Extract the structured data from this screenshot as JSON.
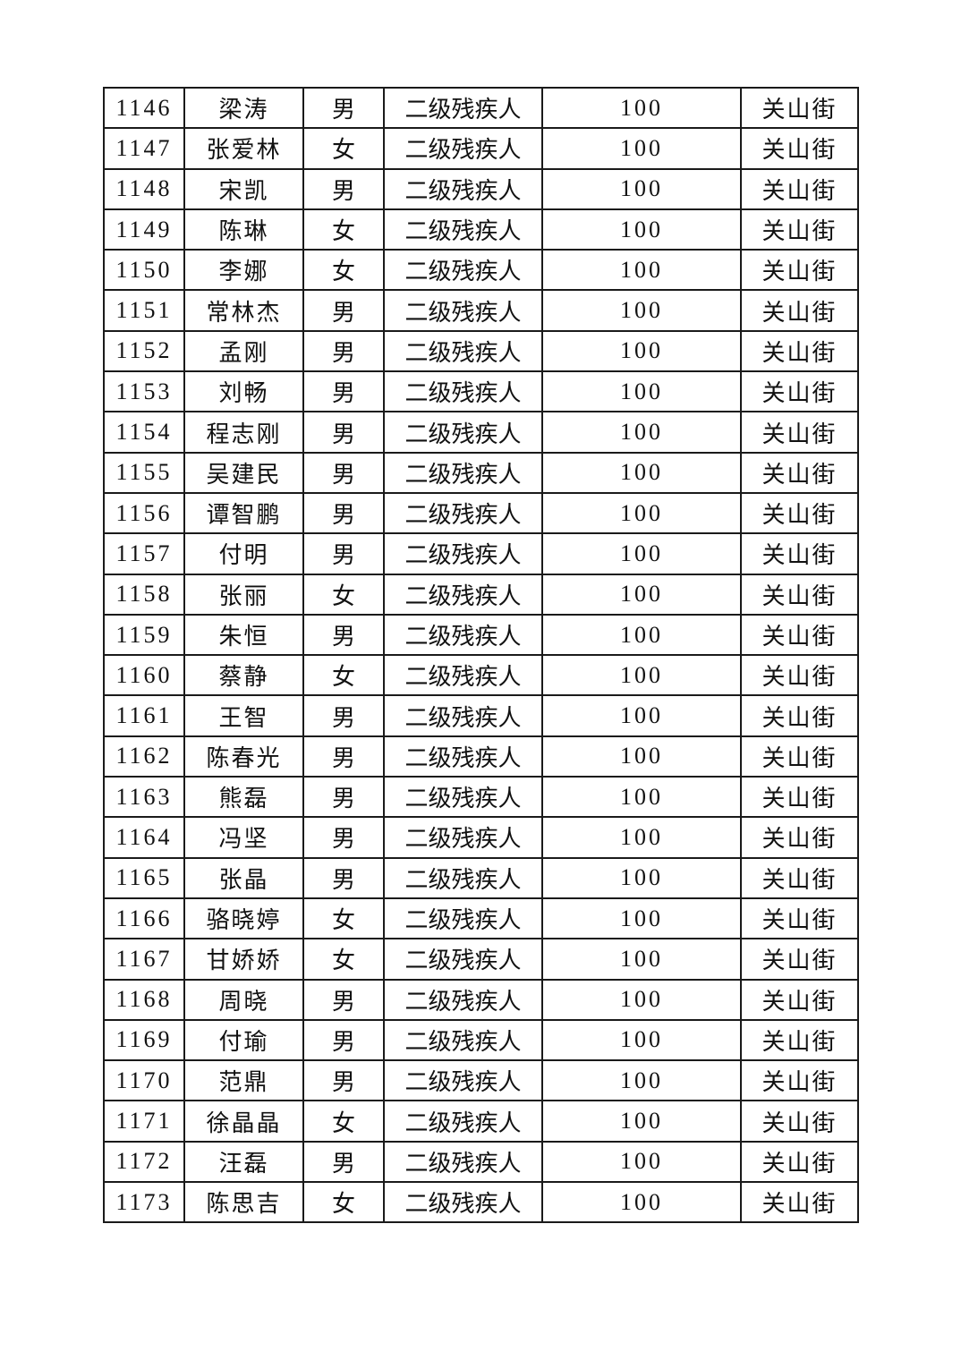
{
  "table": {
    "rows": [
      [
        "1146",
        "梁涛",
        "男",
        "二级残疾人",
        "100",
        "关山街"
      ],
      [
        "1147",
        "张爱林",
        "女",
        "二级残疾人",
        "100",
        "关山街"
      ],
      [
        "1148",
        "宋凯",
        "男",
        "二级残疾人",
        "100",
        "关山街"
      ],
      [
        "1149",
        "陈琳",
        "女",
        "二级残疾人",
        "100",
        "关山街"
      ],
      [
        "1150",
        "李娜",
        "女",
        "二级残疾人",
        "100",
        "关山街"
      ],
      [
        "1151",
        "常林杰",
        "男",
        "二级残疾人",
        "100",
        "关山街"
      ],
      [
        "1152",
        "孟刚",
        "男",
        "二级残疾人",
        "100",
        "关山街"
      ],
      [
        "1153",
        "刘畅",
        "男",
        "二级残疾人",
        "100",
        "关山街"
      ],
      [
        "1154",
        "程志刚",
        "男",
        "二级残疾人",
        "100",
        "关山街"
      ],
      [
        "1155",
        "吴建民",
        "男",
        "二级残疾人",
        "100",
        "关山街"
      ],
      [
        "1156",
        "谭智鹏",
        "男",
        "二级残疾人",
        "100",
        "关山街"
      ],
      [
        "1157",
        "付明",
        "男",
        "二级残疾人",
        "100",
        "关山街"
      ],
      [
        "1158",
        "张丽",
        "女",
        "二级残疾人",
        "100",
        "关山街"
      ],
      [
        "1159",
        "朱恒",
        "男",
        "二级残疾人",
        "100",
        "关山街"
      ],
      [
        "1160",
        "蔡静",
        "女",
        "二级残疾人",
        "100",
        "关山街"
      ],
      [
        "1161",
        "王智",
        "男",
        "二级残疾人",
        "100",
        "关山街"
      ],
      [
        "1162",
        "陈春光",
        "男",
        "二级残疾人",
        "100",
        "关山街"
      ],
      [
        "1163",
        "熊磊",
        "男",
        "二级残疾人",
        "100",
        "关山街"
      ],
      [
        "1164",
        "冯坚",
        "男",
        "二级残疾人",
        "100",
        "关山街"
      ],
      [
        "1165",
        "张晶",
        "男",
        "二级残疾人",
        "100",
        "关山街"
      ],
      [
        "1166",
        "骆晓婷",
        "女",
        "二级残疾人",
        "100",
        "关山街"
      ],
      [
        "1167",
        "甘娇娇",
        "女",
        "二级残疾人",
        "100",
        "关山街"
      ],
      [
        "1168",
        "周晓",
        "男",
        "二级残疾人",
        "100",
        "关山街"
      ],
      [
        "1169",
        "付瑜",
        "男",
        "二级残疾人",
        "100",
        "关山街"
      ],
      [
        "1170",
        "范鼎",
        "男",
        "二级残疾人",
        "100",
        "关山街"
      ],
      [
        "1171",
        "徐晶晶",
        "女",
        "二级残疾人",
        "100",
        "关山街"
      ],
      [
        "1172",
        "汪磊",
        "男",
        "二级残疾人",
        "100",
        "关山街"
      ],
      [
        "1173",
        "陈思吉",
        "女",
        "二级残疾人",
        "100",
        "关山街"
      ]
    ]
  }
}
